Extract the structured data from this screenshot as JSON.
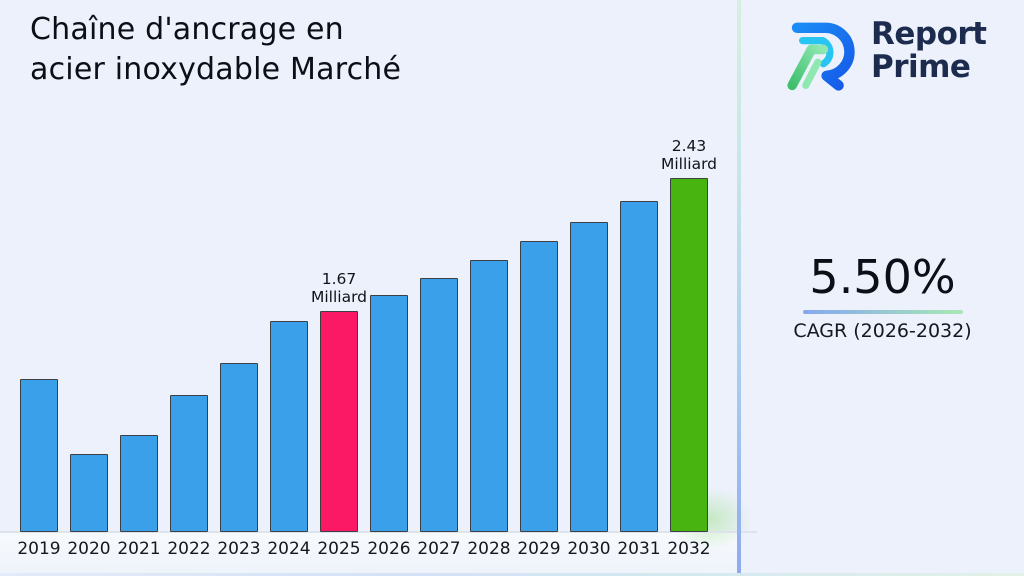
{
  "page": {
    "background": "#ecf1fb"
  },
  "header": {
    "title": "Chaîne d'ancrage en acier inoxydable Marché"
  },
  "brand": {
    "name_line1": "Report",
    "name_line2": "Prime",
    "text_color": "#1d2b4e",
    "logo_colors": {
      "blue": "#1c72f0",
      "cyan": "#29c5f2",
      "green": "#3fbf6e",
      "mint": "#8fe8b0"
    }
  },
  "cagr": {
    "value": "5.50%",
    "label": "CAGR (2026-2032)"
  },
  "chart_data": {
    "type": "bar",
    "title": "Chaîne d'ancrage en acier inoxydable Marché",
    "xlabel": "",
    "ylabel": "Milliard",
    "unit": "Milliard",
    "categories": [
      "2019",
      "2020",
      "2021",
      "2022",
      "2023",
      "2024",
      "2025",
      "2026",
      "2027",
      "2028",
      "2029",
      "2030",
      "2031",
      "2032"
    ],
    "values": [
      1.28,
      0.85,
      0.96,
      1.19,
      1.37,
      1.61,
      1.67,
      1.76,
      1.86,
      1.96,
      2.07,
      2.18,
      2.3,
      2.43
    ],
    "ylim": [
      0,
      2.6
    ],
    "grid": false,
    "legend": false,
    "colors": {
      "default": "#3aa0e9",
      "2025": "#fb1864",
      "2032": "#47b410"
    },
    "bar_border_color": "#3c4043",
    "annotations": [
      {
        "category": "2025",
        "lines": [
          "1.67",
          "Milliard"
        ]
      },
      {
        "category": "2032",
        "lines": [
          "2.43",
          "Milliard"
        ]
      }
    ]
  }
}
